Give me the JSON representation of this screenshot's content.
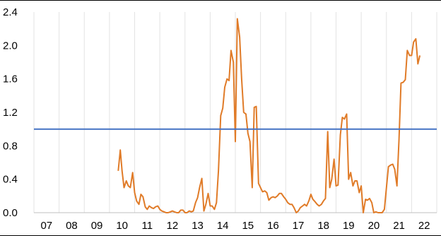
{
  "chart_data": {
    "type": "line",
    "title": "",
    "xlabel": "",
    "ylabel": "",
    "x_tick_labels": [
      "07",
      "08",
      "09",
      "10",
      "11",
      "12",
      "13",
      "14",
      "15",
      "16",
      "17",
      "18",
      "19",
      "20",
      "21",
      "22"
    ],
    "x_range": [
      2006.5,
      2022.5
    ],
    "ylim": [
      0,
      2.4
    ],
    "y_ticks": [
      0.0,
      0.4,
      0.8,
      1.2,
      1.6,
      2.0,
      2.4
    ],
    "y_tick_labels": [
      "0.0",
      "0.4",
      "0.8",
      "1.2",
      "1.6",
      "2.0",
      "2.4"
    ],
    "grid": {
      "vertical": true,
      "horizontal": false
    },
    "legend": "none",
    "series": [
      {
        "color": "#E07B28",
        "points": [
          [
            2009.85,
            0.5
          ],
          [
            2009.93,
            0.75
          ],
          [
            2010.0,
            0.5
          ],
          [
            2010.08,
            0.3
          ],
          [
            2010.17,
            0.38
          ],
          [
            2010.25,
            0.32
          ],
          [
            2010.33,
            0.3
          ],
          [
            2010.42,
            0.48
          ],
          [
            2010.5,
            0.24
          ],
          [
            2010.58,
            0.14
          ],
          [
            2010.67,
            0.1
          ],
          [
            2010.75,
            0.22
          ],
          [
            2010.83,
            0.19
          ],
          [
            2010.92,
            0.07
          ],
          [
            2011.0,
            0.04
          ],
          [
            2011.08,
            0.08
          ],
          [
            2011.17,
            0.06
          ],
          [
            2011.25,
            0.05
          ],
          [
            2011.33,
            0.07
          ],
          [
            2011.42,
            0.08
          ],
          [
            2011.5,
            0.04
          ],
          [
            2011.58,
            0.02
          ],
          [
            2011.67,
            0.01
          ],
          [
            2011.75,
            0.0
          ],
          [
            2011.83,
            0.0
          ],
          [
            2011.92,
            0.01
          ],
          [
            2012.0,
            0.02
          ],
          [
            2012.08,
            0.01
          ],
          [
            2012.17,
            0.0
          ],
          [
            2012.25,
            0.0
          ],
          [
            2012.33,
            0.03
          ],
          [
            2012.42,
            0.03
          ],
          [
            2012.5,
            0.0
          ],
          [
            2012.58,
            0.0
          ],
          [
            2012.67,
            0.02
          ],
          [
            2012.75,
            0.01
          ],
          [
            2012.83,
            0.02
          ],
          [
            2012.92,
            0.12
          ],
          [
            2013.0,
            0.18
          ],
          [
            2013.08,
            0.3
          ],
          [
            2013.17,
            0.41
          ],
          [
            2013.25,
            0.02
          ],
          [
            2013.33,
            0.1
          ],
          [
            2013.42,
            0.23
          ],
          [
            2013.5,
            0.08
          ],
          [
            2013.58,
            0.08
          ],
          [
            2013.67,
            0.04
          ],
          [
            2013.75,
            0.12
          ],
          [
            2013.83,
            0.5
          ],
          [
            2013.92,
            1.16
          ],
          [
            2014.0,
            1.25
          ],
          [
            2014.08,
            1.5
          ],
          [
            2014.17,
            1.6
          ],
          [
            2014.25,
            1.58
          ],
          [
            2014.33,
            1.94
          ],
          [
            2014.42,
            1.8
          ],
          [
            2014.5,
            0.85
          ],
          [
            2014.58,
            2.32
          ],
          [
            2014.67,
            2.1
          ],
          [
            2014.75,
            1.6
          ],
          [
            2014.83,
            1.2
          ],
          [
            2014.92,
            1.18
          ],
          [
            2015.0,
            0.95
          ],
          [
            2015.08,
            0.85
          ],
          [
            2015.17,
            0.3
          ],
          [
            2015.25,
            1.26
          ],
          [
            2015.33,
            1.27
          ],
          [
            2015.42,
            0.35
          ],
          [
            2015.5,
            0.3
          ],
          [
            2015.58,
            0.25
          ],
          [
            2015.67,
            0.26
          ],
          [
            2015.75,
            0.24
          ],
          [
            2015.83,
            0.15
          ],
          [
            2015.92,
            0.18
          ],
          [
            2016.0,
            0.19
          ],
          [
            2016.08,
            0.18
          ],
          [
            2016.17,
            0.2
          ],
          [
            2016.25,
            0.23
          ],
          [
            2016.33,
            0.23
          ],
          [
            2016.42,
            0.19
          ],
          [
            2016.5,
            0.16
          ],
          [
            2016.58,
            0.12
          ],
          [
            2016.67,
            0.1
          ],
          [
            2016.75,
            0.1
          ],
          [
            2016.83,
            0.06
          ],
          [
            2016.92,
            0.0
          ],
          [
            2017.0,
            0.02
          ],
          [
            2017.08,
            0.06
          ],
          [
            2017.17,
            0.08
          ],
          [
            2017.25,
            0.1
          ],
          [
            2017.33,
            0.08
          ],
          [
            2017.42,
            0.14
          ],
          [
            2017.5,
            0.22
          ],
          [
            2017.58,
            0.16
          ],
          [
            2017.67,
            0.13
          ],
          [
            2017.75,
            0.1
          ],
          [
            2017.83,
            0.08
          ],
          [
            2017.92,
            0.1
          ],
          [
            2018.0,
            0.14
          ],
          [
            2018.08,
            0.17
          ],
          [
            2018.17,
            0.97
          ],
          [
            2018.25,
            0.3
          ],
          [
            2018.33,
            0.4
          ],
          [
            2018.42,
            0.64
          ],
          [
            2018.5,
            0.32
          ],
          [
            2018.58,
            0.33
          ],
          [
            2018.67,
            0.93
          ],
          [
            2018.75,
            1.14
          ],
          [
            2018.83,
            1.12
          ],
          [
            2018.92,
            1.18
          ],
          [
            2019.0,
            0.4
          ],
          [
            2019.08,
            0.48
          ],
          [
            2019.17,
            0.32
          ],
          [
            2019.25,
            0.38
          ],
          [
            2019.33,
            0.38
          ],
          [
            2019.42,
            0.24
          ],
          [
            2019.5,
            0.32
          ],
          [
            2019.58,
            0.0
          ],
          [
            2019.67,
            0.16
          ],
          [
            2019.75,
            0.15
          ],
          [
            2019.83,
            0.17
          ],
          [
            2019.92,
            0.12
          ],
          [
            2020.0,
            0.0
          ],
          [
            2020.08,
            0.01
          ],
          [
            2020.17,
            0.0
          ],
          [
            2020.25,
            0.0
          ],
          [
            2020.33,
            0.0
          ],
          [
            2020.42,
            0.04
          ],
          [
            2020.5,
            0.3
          ],
          [
            2020.58,
            0.55
          ],
          [
            2020.67,
            0.57
          ],
          [
            2020.75,
            0.58
          ],
          [
            2020.83,
            0.52
          ],
          [
            2020.92,
            0.32
          ],
          [
            2021.0,
            0.88
          ],
          [
            2021.08,
            1.55
          ],
          [
            2021.17,
            1.56
          ],
          [
            2021.25,
            1.59
          ],
          [
            2021.33,
            1.94
          ],
          [
            2021.42,
            1.88
          ],
          [
            2021.5,
            1.88
          ],
          [
            2021.58,
            2.04
          ],
          [
            2021.67,
            2.08
          ],
          [
            2021.75,
            1.78
          ],
          [
            2021.83,
            1.88
          ]
        ]
      },
      {
        "color": "#4472C4",
        "points": [
          [
            2006.5,
            1.0
          ],
          [
            2022.5,
            1.0
          ]
        ]
      }
    ]
  }
}
